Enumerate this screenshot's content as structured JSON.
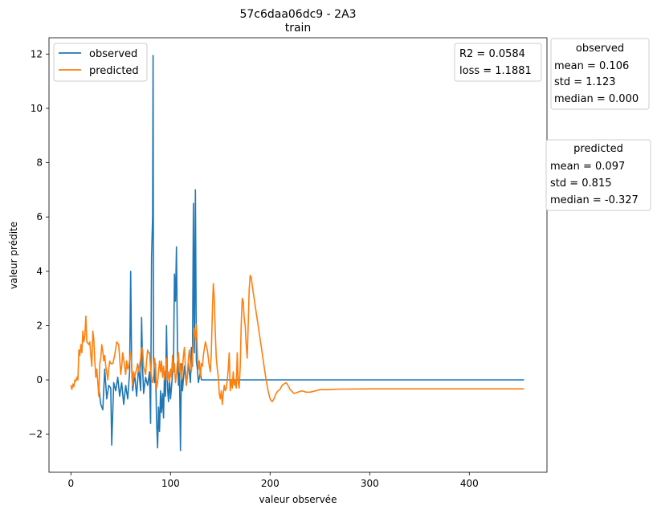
{
  "chart_data": {
    "type": "line",
    "title": "57c6daa06dc9 - 2A3",
    "subtitle": "train",
    "xlabel": "valeur observée",
    "ylabel": "valeur prédite",
    "xlim": [
      -22,
      478
    ],
    "ylim": [
      -3.4,
      12.6
    ],
    "xticks": [
      0,
      100,
      200,
      300,
      400
    ],
    "xtick_labels": [
      "0",
      "100",
      "200",
      "300",
      "400"
    ],
    "yticks": [
      -2,
      0,
      2,
      4,
      6,
      8,
      10,
      12
    ],
    "ytick_labels": [
      "−2",
      "0",
      "2",
      "4",
      "6",
      "8",
      "10",
      "12"
    ],
    "grid": false,
    "legend": {
      "placement": "top-left",
      "entries": [
        "observed",
        "predicted"
      ]
    },
    "series": [
      {
        "name": "observed",
        "color": "#1f77b4",
        "points": [
          [
            28,
            -0.3
          ],
          [
            30,
            -0.9
          ],
          [
            32,
            -1.1
          ],
          [
            34,
            0.4
          ],
          [
            36,
            -0.7
          ],
          [
            38,
            -0.2
          ],
          [
            40,
            -0.3
          ],
          [
            41,
            -2.4
          ],
          [
            43,
            -0.1
          ],
          [
            45,
            -0.4
          ],
          [
            47,
            0.1
          ],
          [
            49,
            -0.6
          ],
          [
            51,
            -0.1
          ],
          [
            53,
            -0.9
          ],
          [
            55,
            -0.2
          ],
          [
            57,
            -0.7
          ],
          [
            59,
            0.3
          ],
          [
            60,
            4.0
          ],
          [
            61,
            0.5
          ],
          [
            62,
            -0.4
          ],
          [
            64,
            0.2
          ],
          [
            66,
            -0.6
          ],
          [
            68,
            0.5
          ],
          [
            70,
            -0.4
          ],
          [
            71,
            2.3
          ],
          [
            72,
            0.4
          ],
          [
            73,
            -0.5
          ],
          [
            75,
            0.1
          ],
          [
            77,
            -0.2
          ],
          [
            79,
            0.3
          ],
          [
            80,
            -1.6
          ],
          [
            81,
            4.5
          ],
          [
            82,
            6.0
          ],
          [
            82.5,
            11.95
          ],
          [
            83,
            0.8
          ],
          [
            84,
            -0.1
          ],
          [
            85,
            0.6
          ],
          [
            86,
            -1.5
          ],
          [
            87,
            -2.5
          ],
          [
            88,
            -1.0
          ],
          [
            89,
            -1.9
          ],
          [
            90,
            -0.4
          ],
          [
            91,
            -1.2
          ],
          [
            92,
            -0.5
          ],
          [
            93,
            -1.4
          ],
          [
            94,
            0.3
          ],
          [
            95,
            -0.6
          ],
          [
            96,
            2.0
          ],
          [
            97,
            -0.3
          ],
          [
            98,
            -0.8
          ],
          [
            99,
            0.1
          ],
          [
            100,
            -0.7
          ],
          [
            102,
            0.2
          ],
          [
            103,
            0.5
          ],
          [
            104,
            3.9
          ],
          [
            105,
            2.9
          ],
          [
            106,
            4.9
          ],
          [
            107,
            1.0
          ],
          [
            108,
            -0.2
          ],
          [
            109,
            0.4
          ],
          [
            110,
            -2.6
          ],
          [
            111,
            0.6
          ],
          [
            112,
            -0.4
          ],
          [
            114,
            0.5
          ],
          [
            116,
            -0.2
          ],
          [
            118,
            0.6
          ],
          [
            120,
            -0.1
          ],
          [
            121,
            1.2
          ],
          [
            122,
            0.5
          ],
          [
            123,
            6.5
          ],
          [
            124,
            1.0
          ],
          [
            125,
            7.0
          ],
          [
            126,
            0.7
          ],
          [
            127,
            0.4
          ],
          [
            128,
            -0.1
          ],
          [
            130,
            0.3
          ],
          [
            131,
            0.0
          ],
          [
            206,
            0.0
          ],
          [
            455,
            0.0
          ]
        ]
      },
      {
        "name": "predicted",
        "color": "#ff7f0e",
        "points": [
          [
            0,
            -0.2
          ],
          [
            1,
            -0.35
          ],
          [
            2,
            -0.15
          ],
          [
            3,
            -0.25
          ],
          [
            4,
            0.0
          ],
          [
            5,
            -0.05
          ],
          [
            6,
            0.1
          ],
          [
            7,
            0.0
          ],
          [
            8,
            1.1
          ],
          [
            9,
            0.9
          ],
          [
            10,
            1.3
          ],
          [
            11,
            1.0
          ],
          [
            12,
            1.8
          ],
          [
            13,
            1.4
          ],
          [
            14,
            1.6
          ],
          [
            15,
            2.35
          ],
          [
            16,
            1.4
          ],
          [
            18,
            1.3
          ],
          [
            19,
            1.4
          ],
          [
            20,
            0.9
          ],
          [
            21,
            0.5
          ],
          [
            22,
            1.8
          ],
          [
            23,
            1.5
          ],
          [
            24,
            0.7
          ],
          [
            25,
            0.1
          ],
          [
            26,
            0.4
          ],
          [
            27,
            -0.1
          ],
          [
            28,
            -0.6
          ],
          [
            29,
            0.6
          ],
          [
            30,
            0.8
          ],
          [
            31,
            1.3
          ],
          [
            32,
            1.05
          ],
          [
            33,
            0.7
          ],
          [
            34,
            0.9
          ],
          [
            35,
            0.5
          ],
          [
            36,
            0.3
          ],
          [
            37,
            0.0
          ],
          [
            38,
            0.4
          ],
          [
            39,
            0.7
          ],
          [
            40,
            0.6
          ],
          [
            42,
            0.6
          ],
          [
            44,
            0.9
          ],
          [
            46,
            1.4
          ],
          [
            48,
            1.3
          ],
          [
            49,
            0.8
          ],
          [
            50,
            0.2
          ],
          [
            51,
            0.5
          ],
          [
            52,
            1.0
          ],
          [
            54,
            0.5
          ],
          [
            55,
            0.2
          ],
          [
            56,
            0.7
          ],
          [
            57,
            0.4
          ],
          [
            58,
            0.5
          ],
          [
            60,
            1.0
          ],
          [
            61,
            0.6
          ],
          [
            62,
            -0.2
          ],
          [
            63,
            0.3
          ],
          [
            64,
            0.1
          ],
          [
            66,
            0.4
          ],
          [
            67,
            0.6
          ],
          [
            68,
            0.3
          ],
          [
            70,
            0.8
          ],
          [
            71,
            1.2
          ],
          [
            72,
            1.1
          ],
          [
            73,
            0.5
          ],
          [
            75,
            0.2
          ],
          [
            76,
            0.7
          ],
          [
            77,
            1.1
          ],
          [
            78,
            1.0
          ],
          [
            79,
            1.0
          ],
          [
            80,
            0.4
          ],
          [
            81,
            0.0
          ],
          [
            82,
            -0.1
          ],
          [
            83,
            0.2
          ],
          [
            84,
            0.8
          ],
          [
            85,
            0.5
          ],
          [
            86,
            -0.3
          ],
          [
            87,
            -0.1
          ],
          [
            88,
            0.3
          ],
          [
            89,
            0.7
          ],
          [
            90,
            0.3
          ],
          [
            91,
            0.7
          ],
          [
            92,
            0.1
          ],
          [
            93,
            0.5
          ],
          [
            94,
            0.0
          ],
          [
            95,
            0.3
          ],
          [
            96,
            0.8
          ],
          [
            97,
            0.0
          ],
          [
            98,
            0.3
          ],
          [
            99,
            -0.1
          ],
          [
            100,
            0.4
          ],
          [
            101,
            0.1
          ],
          [
            102,
            0.9
          ],
          [
            103,
            0.3
          ],
          [
            104,
            0.6
          ],
          [
            105,
            -0.1
          ],
          [
            106,
            0.2
          ],
          [
            107,
            0.7
          ],
          [
            108,
            1.0
          ],
          [
            109,
            0.3
          ],
          [
            110,
            0.6
          ],
          [
            111,
            0.0
          ],
          [
            112,
            0.4
          ],
          [
            113,
            0.9
          ],
          [
            114,
            1.2
          ],
          [
            115,
            0.4
          ],
          [
            116,
            -0.2
          ],
          [
            117,
            0.2
          ],
          [
            118,
            0.8
          ],
          [
            119,
            1.1
          ],
          [
            120,
            0.6
          ],
          [
            121,
            0.3
          ],
          [
            122,
            0.9
          ],
          [
            123,
            1.5
          ],
          [
            124,
            1.9
          ],
          [
            125,
            1.5
          ],
          [
            126,
            2.05
          ],
          [
            127,
            1.0
          ],
          [
            128,
            0.4
          ],
          [
            129,
            0.7
          ],
          [
            130,
            0.1
          ],
          [
            131,
            0.6
          ],
          [
            132,
            0.5
          ],
          [
            133,
            0.9
          ],
          [
            135,
            1.4
          ],
          [
            137,
            1.1
          ],
          [
            139,
            0.5
          ],
          [
            140,
            0.3
          ],
          [
            141,
            1.0
          ],
          [
            142,
            2.5
          ],
          [
            143,
            3.55
          ],
          [
            144,
            3.0
          ],
          [
            145,
            1.7
          ],
          [
            146,
            0.8
          ],
          [
            147,
            0.4
          ],
          [
            148,
            0.1
          ],
          [
            149,
            -0.5
          ],
          [
            150,
            -0.7
          ],
          [
            151,
            -0.4
          ],
          [
            152,
            -0.9
          ],
          [
            153,
            -0.5
          ],
          [
            154,
            -0.2
          ],
          [
            155,
            -0.4
          ],
          [
            156,
            -0.3
          ],
          [
            157,
            0.0
          ],
          [
            158,
            0.4
          ],
          [
            159,
            1.0
          ],
          [
            160,
            -0.4
          ],
          [
            161,
            0.0
          ],
          [
            162,
            -0.3
          ],
          [
            163,
            0.3
          ],
          [
            164,
            -0.2
          ],
          [
            165,
            0.0
          ],
          [
            166,
            -0.3
          ],
          [
            167,
            1.0
          ],
          [
            168,
            -0.1
          ],
          [
            169,
            -0.3
          ],
          [
            170,
            0.5
          ],
          [
            171,
            2.0
          ],
          [
            172,
            3.0
          ],
          [
            173,
            2.9
          ],
          [
            174,
            2.3
          ],
          [
            175,
            2.0
          ],
          [
            176,
            1.3
          ],
          [
            177,
            0.8
          ],
          [
            178,
            2.0
          ],
          [
            179,
            3.3
          ],
          [
            180,
            3.85
          ],
          [
            181,
            3.8
          ],
          [
            182,
            3.5
          ],
          [
            184,
            3.0
          ],
          [
            186,
            2.5
          ],
          [
            188,
            2.0
          ],
          [
            190,
            1.5
          ],
          [
            192,
            1.0
          ],
          [
            194,
            0.5
          ],
          [
            196,
            0.0
          ],
          [
            198,
            -0.4
          ],
          [
            200,
            -0.7
          ],
          [
            202,
            -0.8
          ],
          [
            204,
            -0.7
          ],
          [
            206,
            -0.5
          ],
          [
            208,
            -0.4
          ],
          [
            210,
            -0.35
          ],
          [
            212,
            -0.2
          ],
          [
            214,
            -0.15
          ],
          [
            216,
            -0.1
          ],
          [
            218,
            -0.2
          ],
          [
            220,
            -0.35
          ],
          [
            224,
            -0.5
          ],
          [
            228,
            -0.45
          ],
          [
            232,
            -0.4
          ],
          [
            236,
            -0.45
          ],
          [
            240,
            -0.45
          ],
          [
            244,
            -0.42
          ],
          [
            250,
            -0.36
          ],
          [
            256,
            -0.36
          ],
          [
            260,
            -0.35
          ],
          [
            270,
            -0.34
          ],
          [
            300,
            -0.33
          ],
          [
            350,
            -0.33
          ],
          [
            400,
            -0.33
          ],
          [
            455,
            -0.33
          ]
        ]
      }
    ]
  },
  "metrics_box": {
    "r2": "R2 = 0.0584",
    "loss": "loss = 1.1881"
  },
  "observed_stats": {
    "title": "observed",
    "mean": "mean = 0.106",
    "std": "std = 1.123",
    "median": "median = 0.000"
  },
  "predicted_stats": {
    "title": "predicted",
    "mean": "mean = 0.097",
    "std": "std = 0.815",
    "median": "median = -0.327"
  }
}
